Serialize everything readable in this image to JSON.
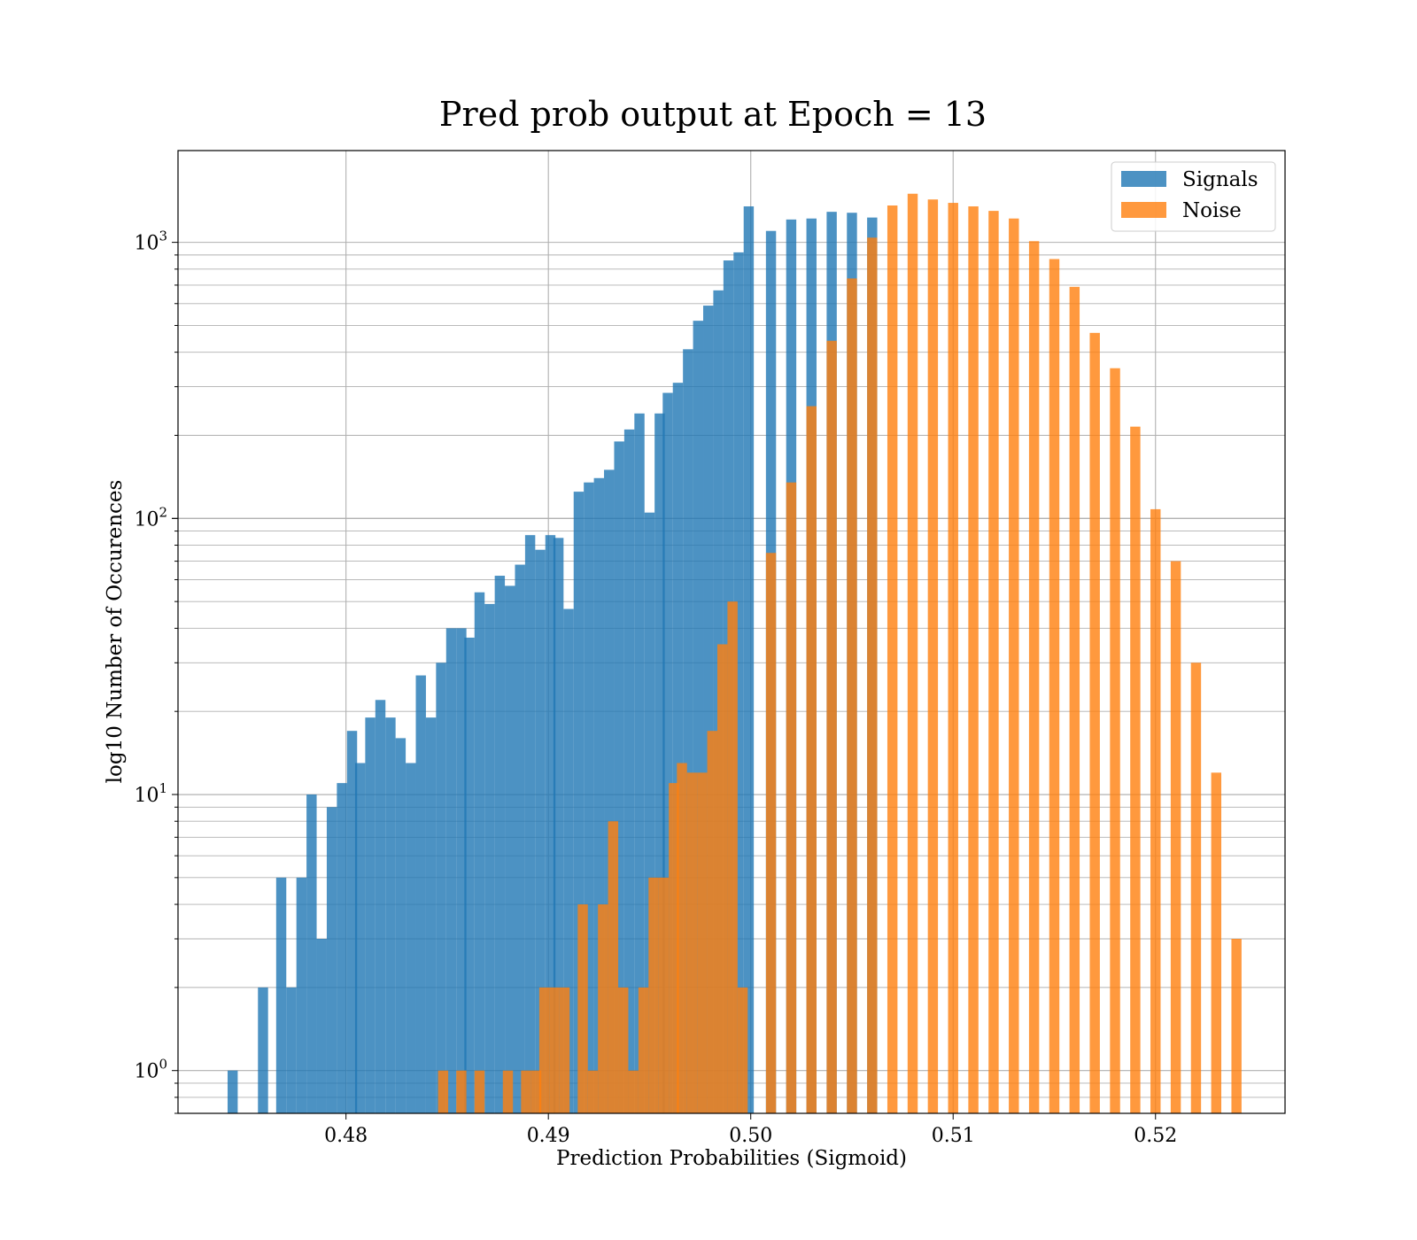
{
  "chart_data": {
    "type": "bar",
    "title": "Pred prob output at Epoch = 13",
    "xlabel": "Prediction Probabilities (Sigmoid)",
    "ylabel": "log10 Number of Occurences",
    "xlim": [
      0.4717,
      0.5264
    ],
    "ylim": [
      0.7,
      2150
    ],
    "yscale": "log",
    "grid": true,
    "legend_position": "top-right",
    "bin_width": 0.0005,
    "x_ticks": [
      0.48,
      0.49,
      0.5,
      0.51,
      0.52
    ],
    "x_tick_labels": [
      "0.48",
      "0.49",
      "0.50",
      "0.51",
      "0.52"
    ],
    "y_ticks": [
      1,
      10,
      100,
      1000
    ],
    "y_tick_labels": [
      {
        "base": "10",
        "exp": "0"
      },
      {
        "base": "10",
        "exp": "1"
      },
      {
        "base": "10",
        "exp": "2"
      },
      {
        "base": "10",
        "exp": "3"
      }
    ],
    "series": [
      {
        "name": "Signals",
        "color": "#1f77b4",
        "opacity": 0.8,
        "x": [
          0.4744,
          0.4759,
          0.4768,
          0.4773,
          0.4778,
          0.4783,
          0.4788,
          0.4793,
          0.4798,
          0.4803,
          0.4807,
          0.4812,
          0.4817,
          0.4822,
          0.4827,
          0.4832,
          0.4837,
          0.4842,
          0.4847,
          0.4852,
          0.4857,
          0.4861,
          0.4866,
          0.4871,
          0.4876,
          0.4881,
          0.4886,
          0.4891,
          0.4896,
          0.4901,
          0.4905,
          0.491,
          0.4915,
          0.492,
          0.4925,
          0.493,
          0.4935,
          0.494,
          0.4945,
          0.495,
          0.4955,
          0.4959,
          0.4964,
          0.4969,
          0.4974,
          0.4979,
          0.4984,
          0.4989,
          0.4994,
          0.4999,
          0.501,
          0.502,
          0.503,
          0.504,
          0.505,
          0.506
        ],
        "values": [
          1,
          2,
          5,
          2,
          5,
          10,
          3,
          9,
          11,
          17,
          13,
          19,
          22,
          19,
          16,
          13,
          27,
          19,
          30,
          40,
          40,
          37,
          54,
          49,
          62,
          57,
          68,
          87,
          77,
          87,
          85,
          47,
          125,
          135,
          140,
          150,
          190,
          210,
          240,
          105,
          240,
          285,
          310,
          410,
          520,
          590,
          670,
          860,
          920,
          1350,
          1100,
          1210,
          1220,
          1290,
          1280,
          1230
        ]
      },
      {
        "name": "Noise",
        "color": "#ff7f0e",
        "opacity": 0.8,
        "x": [
          0.4848,
          0.4857,
          0.4866,
          0.488,
          0.4889,
          0.4894,
          0.4898,
          0.4903,
          0.4908,
          0.4917,
          0.4922,
          0.4927,
          0.4932,
          0.4937,
          0.4942,
          0.4947,
          0.4952,
          0.4957,
          0.4962,
          0.4966,
          0.4971,
          0.4976,
          0.4981,
          0.4986,
          0.4991,
          0.4996,
          0.501,
          0.502,
          0.503,
          0.504,
          0.505,
          0.506,
          0.507,
          0.508,
          0.509,
          0.51,
          0.511,
          0.512,
          0.513,
          0.514,
          0.515,
          0.516,
          0.517,
          0.518,
          0.519,
          0.52,
          0.521,
          0.522,
          0.523,
          0.524
        ],
        "values": [
          1,
          1,
          1,
          1,
          1,
          1,
          2,
          2,
          2,
          4,
          1,
          4,
          8,
          2,
          1,
          2,
          5,
          5,
          11,
          13,
          12,
          12,
          17,
          35,
          50,
          2,
          75,
          135,
          255,
          440,
          740,
          1040,
          1360,
          1500,
          1430,
          1390,
          1350,
          1300,
          1220,
          1010,
          870,
          690,
          470,
          350,
          215,
          108,
          70,
          30,
          12,
          3
        ]
      }
    ]
  }
}
